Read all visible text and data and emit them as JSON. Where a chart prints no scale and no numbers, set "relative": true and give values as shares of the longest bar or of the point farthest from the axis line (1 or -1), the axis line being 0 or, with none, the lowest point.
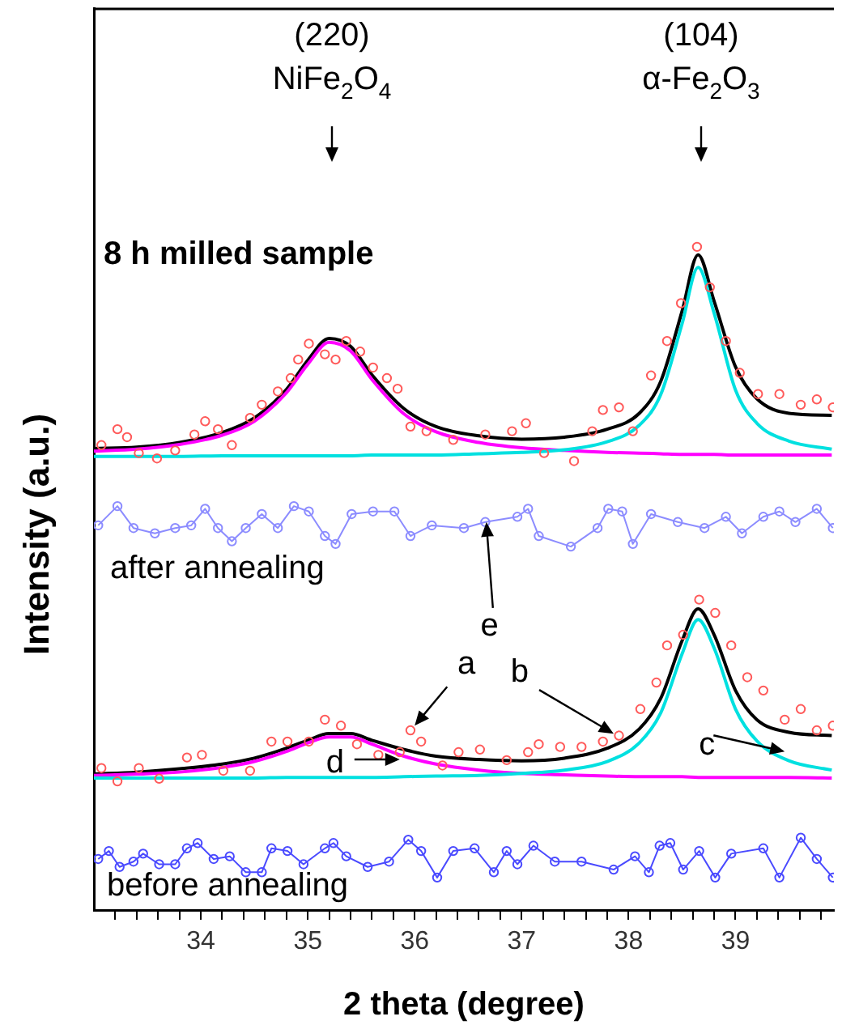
{
  "chart_data": {
    "type": "line",
    "relative": true,
    "xlabel": "2 theta (degree)",
    "ylabel": "Intensity (a.u.)",
    "xlim": [
      33.0,
      39.92
    ],
    "xticks": [
      {
        "value": 33.2,
        "label": null
      },
      {
        "value": 33.4,
        "label": null
      },
      {
        "value": 33.6,
        "label": null
      },
      {
        "value": 33.8,
        "label": null
      },
      34,
      {
        "value": 34.2,
        "label": null
      },
      {
        "value": 34.4,
        "label": null
      },
      {
        "value": 34.6,
        "label": null
      },
      {
        "value": 34.8,
        "label": null
      },
      35,
      {
        "value": 35.2,
        "label": null
      },
      {
        "value": 35.4,
        "label": null
      },
      {
        "value": 35.6,
        "label": null
      },
      {
        "value": 35.8,
        "label": null
      },
      36,
      {
        "value": 36.2,
        "label": null
      },
      {
        "value": 36.4,
        "label": null
      },
      {
        "value": 36.6,
        "label": null
      },
      {
        "value": 36.8,
        "label": null
      },
      37,
      {
        "value": 37.2,
        "label": null
      },
      {
        "value": 37.4,
        "label": null
      },
      {
        "value": 37.6,
        "label": null
      },
      {
        "value": 37.8,
        "label": null
      },
      38,
      {
        "value": 38.2,
        "label": null
      },
      {
        "value": 38.4,
        "label": null
      },
      {
        "value": 38.6,
        "label": null
      },
      {
        "value": 38.8,
        "label": null
      },
      39,
      {
        "value": 39.2,
        "label": null
      },
      {
        "value": 39.4,
        "label": null
      },
      {
        "value": 39.6,
        "label": null
      },
      {
        "value": 39.8,
        "label": null
      }
    ],
    "annotations": [
      "(220)\nNiFe$_{2}$O$_{4}$",
      "(104)\nα-Fe$_{2}$O$_{3}$",
      "8 h milled sample",
      "after annealing",
      "before annealing",
      {
        "text": "a",
        "x": 36.0,
        "y": 0.278
      },
      {
        "text": "b",
        "x": 37.86,
        "y": 0.266
      },
      {
        "text": "c",
        "x": 39.46,
        "y": 0.239
      },
      {
        "text": "d",
        "x": 35.86,
        "y": 0.227
      },
      {
        "text": "e",
        "x": 36.67,
        "y": 0.585
      }
    ],
    "series": [
      {
        "type": "scatter",
        "marker": "circle",
        "color": "#ff5a5a",
        "x": [
          33.07,
          33.22,
          33.31,
          33.42,
          33.59,
          33.76,
          33.94,
          34.04,
          34.16,
          34.29,
          34.46,
          34.57,
          34.72,
          34.84,
          34.91,
          35.01,
          35.16,
          35.26,
          35.36,
          35.49,
          35.61,
          35.74,
          35.84,
          35.96,
          36.11,
          36.36,
          36.66,
          36.91,
          37.04,
          37.21,
          37.49,
          37.66,
          37.76,
          37.91,
          38.04,
          38.21,
          38.36,
          38.49,
          38.64,
          38.76,
          38.91,
          39.04,
          39.21,
          39.41,
          39.61,
          39.76,
          39.91
        ],
        "values": [
          0.701,
          0.725,
          0.713,
          0.689,
          0.681,
          0.693,
          0.717,
          0.737,
          0.725,
          0.701,
          0.742,
          0.762,
          0.782,
          0.802,
          0.83,
          0.854,
          0.838,
          0.83,
          0.858,
          0.842,
          0.818,
          0.802,
          0.786,
          0.729,
          0.722,
          0.709,
          0.717,
          0.722,
          0.734,
          0.689,
          0.677,
          0.722,
          0.754,
          0.758,
          0.722,
          0.806,
          0.858,
          0.915,
          1.0,
          0.939,
          0.858,
          0.81,
          0.778,
          0.778,
          0.762,
          0.77,
          0.758
        ]
      },
      {
        "type": "line",
        "marker": "none",
        "color": "#00e0e0",
        "x": [
          33.0,
          33.4,
          33.8,
          34.2,
          34.5,
          34.8,
          35.0,
          35.2,
          35.4,
          35.6,
          35.9,
          36.2,
          36.6,
          37.0,
          37.4,
          37.8,
          38.1,
          38.3,
          38.5,
          38.65,
          38.8,
          39.0,
          39.2,
          39.5,
          39.9
        ],
        "values": [
          0.684,
          0.684,
          0.684,
          0.685,
          0.685,
          0.685,
          0.685,
          0.685,
          0.685,
          0.686,
          0.686,
          0.686,
          0.688,
          0.69,
          0.694,
          0.706,
          0.731,
          0.777,
          0.884,
          0.969,
          0.9,
          0.784,
          0.734,
          0.707,
          0.695
        ]
      },
      {
        "type": "line",
        "marker": "none",
        "color": "#ff00ff",
        "x": [
          33.0,
          33.4,
          33.8,
          34.2,
          34.5,
          34.8,
          35.0,
          35.2,
          35.4,
          35.6,
          35.9,
          36.2,
          36.6,
          37.0,
          37.4,
          37.8,
          38.1,
          38.3,
          38.5,
          38.65,
          38.8,
          39.0,
          39.2,
          39.5,
          39.9
        ],
        "values": [
          0.692,
          0.695,
          0.702,
          0.716,
          0.737,
          0.78,
          0.823,
          0.856,
          0.843,
          0.8,
          0.748,
          0.721,
          0.705,
          0.697,
          0.693,
          0.69,
          0.689,
          0.688,
          0.687,
          0.687,
          0.687,
          0.686,
          0.686,
          0.686,
          0.686
        ]
      },
      {
        "type": "line",
        "marker": "none",
        "color": "#000000",
        "x": [
          33.0,
          33.4,
          33.8,
          34.2,
          34.5,
          34.8,
          35.0,
          35.2,
          35.4,
          35.6,
          35.9,
          36.2,
          36.6,
          37.0,
          37.4,
          37.8,
          38.1,
          38.3,
          38.5,
          38.65,
          38.8,
          39.0,
          39.2,
          39.5,
          39.9
        ],
        "values": [
          0.696,
          0.698,
          0.705,
          0.72,
          0.742,
          0.785,
          0.829,
          0.862,
          0.85,
          0.807,
          0.756,
          0.729,
          0.715,
          0.71,
          0.713,
          0.725,
          0.749,
          0.797,
          0.903,
          0.988,
          0.918,
          0.819,
          0.771,
          0.749,
          0.746
        ]
      },
      {
        "type": "line",
        "marker": "circle",
        "color": "#8c8cff",
        "x": [
          33.04,
          33.22,
          33.37,
          33.57,
          33.76,
          33.91,
          34.04,
          34.16,
          34.29,
          34.42,
          34.57,
          34.72,
          34.87,
          35.01,
          35.16,
          35.26,
          35.41,
          35.61,
          35.81,
          35.96,
          36.16,
          36.46,
          36.66,
          36.96,
          37.06,
          37.16,
          37.46,
          37.71,
          37.81,
          37.94,
          38.04,
          38.21,
          38.46,
          38.71,
          38.91,
          39.06,
          39.26,
          39.41,
          39.56,
          39.76,
          39.91
        ],
        "values": [
          0.58,
          0.609,
          0.576,
          0.568,
          0.576,
          0.58,
          0.605,
          0.576,
          0.556,
          0.576,
          0.597,
          0.576,
          0.609,
          0.601,
          0.564,
          0.552,
          0.597,
          0.601,
          0.601,
          0.564,
          0.58,
          0.576,
          0.585,
          0.593,
          0.605,
          0.564,
          0.548,
          0.576,
          0.605,
          0.601,
          0.552,
          0.597,
          0.585,
          0.576,
          0.593,
          0.568,
          0.593,
          0.601,
          0.585,
          0.605,
          0.576
        ]
      },
      {
        "type": "scatter",
        "marker": "circle",
        "color": "#ff5a5a",
        "x": [
          33.07,
          33.22,
          33.42,
          33.61,
          33.87,
          34.01,
          34.21,
          34.46,
          34.66,
          34.81,
          35.01,
          35.16,
          35.31,
          35.46,
          35.66,
          35.86,
          35.96,
          36.06,
          36.26,
          36.41,
          36.61,
          36.86,
          37.06,
          37.16,
          37.36,
          37.56,
          37.76,
          37.91,
          38.11,
          38.26,
          38.36,
          38.51,
          38.66,
          38.81,
          38.96,
          39.11,
          39.26,
          39.46,
          39.61,
          39.76,
          39.91
        ],
        "values": [
          0.214,
          0.194,
          0.214,
          0.198,
          0.23,
          0.234,
          0.21,
          0.21,
          0.254,
          0.254,
          0.254,
          0.287,
          0.278,
          0.25,
          0.234,
          0.238,
          0.271,
          0.254,
          0.218,
          0.238,
          0.242,
          0.226,
          0.238,
          0.25,
          0.246,
          0.246,
          0.254,
          0.263,
          0.303,
          0.343,
          0.399,
          0.415,
          0.468,
          0.448,
          0.399,
          0.351,
          0.331,
          0.287,
          0.303,
          0.271,
          0.278
        ]
      },
      {
        "type": "line",
        "marker": "none",
        "color": "#00e0e0",
        "x": [
          33.0,
          33.4,
          33.8,
          34.2,
          34.5,
          34.8,
          35.0,
          35.2,
          35.4,
          35.6,
          35.9,
          36.2,
          36.6,
          37.0,
          37.4,
          37.8,
          38.1,
          38.3,
          38.5,
          38.65,
          38.8,
          39.0,
          39.2,
          39.5,
          39.9
        ],
        "values": [
          0.199,
          0.199,
          0.199,
          0.199,
          0.199,
          0.2,
          0.2,
          0.2,
          0.2,
          0.2,
          0.201,
          0.202,
          0.203,
          0.206,
          0.211,
          0.224,
          0.252,
          0.297,
          0.386,
          0.438,
          0.395,
          0.303,
          0.255,
          0.225,
          0.211
        ]
      },
      {
        "type": "line",
        "marker": "none",
        "color": "#ff00ff",
        "x": [
          33.0,
          33.4,
          33.8,
          34.2,
          34.5,
          34.8,
          35.0,
          35.2,
          35.4,
          35.6,
          35.9,
          36.2,
          36.6,
          37.0,
          37.4,
          37.8,
          38.1,
          38.3,
          38.5,
          38.65,
          38.8,
          39.0,
          39.2,
          39.5,
          39.9
        ],
        "values": [
          0.203,
          0.205,
          0.208,
          0.215,
          0.224,
          0.239,
          0.252,
          0.261,
          0.261,
          0.25,
          0.232,
          0.22,
          0.211,
          0.206,
          0.204,
          0.202,
          0.201,
          0.201,
          0.201,
          0.2,
          0.2,
          0.2,
          0.2,
          0.2,
          0.199
        ]
      },
      {
        "type": "line",
        "marker": "none",
        "color": "#000000",
        "x": [
          33.0,
          33.4,
          33.8,
          34.2,
          34.5,
          34.8,
          35.0,
          35.2,
          35.4,
          35.6,
          35.9,
          36.2,
          36.6,
          37.0,
          37.4,
          37.8,
          38.1,
          38.3,
          38.5,
          38.65,
          38.8,
          39.0,
          39.2,
          39.5,
          39.9
        ],
        "values": [
          0.205,
          0.208,
          0.213,
          0.22,
          0.229,
          0.244,
          0.256,
          0.266,
          0.266,
          0.256,
          0.242,
          0.232,
          0.227,
          0.225,
          0.229,
          0.244,
          0.273,
          0.319,
          0.406,
          0.454,
          0.415,
          0.331,
          0.287,
          0.268,
          0.263
        ]
      },
      {
        "type": "line",
        "marker": "circle",
        "color": "#4a4aff",
        "x": [
          33.04,
          33.14,
          33.24,
          33.37,
          33.46,
          33.61,
          33.76,
          33.87,
          33.97,
          34.12,
          34.27,
          34.42,
          34.57,
          34.66,
          34.81,
          34.96,
          35.16,
          35.24,
          35.36,
          35.56,
          35.76,
          35.94,
          36.06,
          36.21,
          36.36,
          36.56,
          36.74,
          36.86,
          36.96,
          37.11,
          37.31,
          37.56,
          37.86,
          38.06,
          38.19,
          38.29,
          38.39,
          38.51,
          38.66,
          38.81,
          38.96,
          39.26,
          39.41,
          39.61,
          39.76,
          39.91
        ],
        "values": [
          0.077,
          0.089,
          0.065,
          0.073,
          0.085,
          0.069,
          0.069,
          0.093,
          0.101,
          0.077,
          0.081,
          0.057,
          0.057,
          0.093,
          0.089,
          0.069,
          0.093,
          0.101,
          0.081,
          0.065,
          0.073,
          0.106,
          0.089,
          0.049,
          0.089,
          0.093,
          0.057,
          0.089,
          0.069,
          0.097,
          0.073,
          0.073,
          0.061,
          0.081,
          0.057,
          0.097,
          0.101,
          0.061,
          0.089,
          0.049,
          0.085,
          0.093,
          0.049,
          0.109,
          0.077,
          0.049
        ]
      }
    ]
  }
}
